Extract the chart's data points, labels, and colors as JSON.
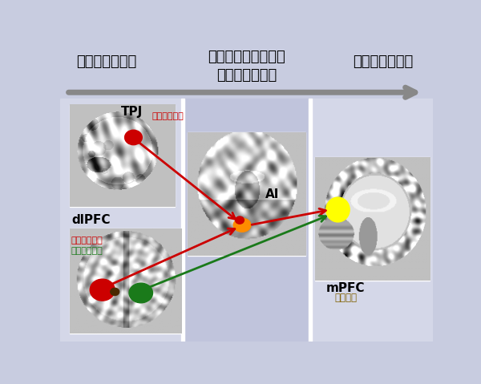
{
  "bg_color": "#c8cce0",
  "col1_color": "#d4d7e8",
  "col2_color": "#c0c4dc",
  "col3_color": "#d4d7e8",
  "fig_width": 6.0,
  "fig_height": 4.79,
  "title_left": "ボーナスの提示",
  "title_center_line1": "他者報酬の意思決定",
  "title_center_line2": "への考慮度合い",
  "title_right": "最終の意思決定",
  "label_TPJ": "TPJ",
  "label_other_bonus_TPJ": "他者ボーナス",
  "label_dlPFC": "dlPFC",
  "label_other_bonus_dlPFC": "他者ボーナス",
  "label_self_bonus_dlPFC": "自己ボーナス",
  "label_AI": "AI",
  "label_mPFC": "mPFC",
  "label_decision": "意思決定",
  "color_red": "#cc0000",
  "color_green": "#1a7a1a",
  "color_dark_olive": "#806000",
  "arrow_color": "#888888",
  "font_jp": "Noto Sans CJK JP",
  "font_en": "DejaVu Sans"
}
